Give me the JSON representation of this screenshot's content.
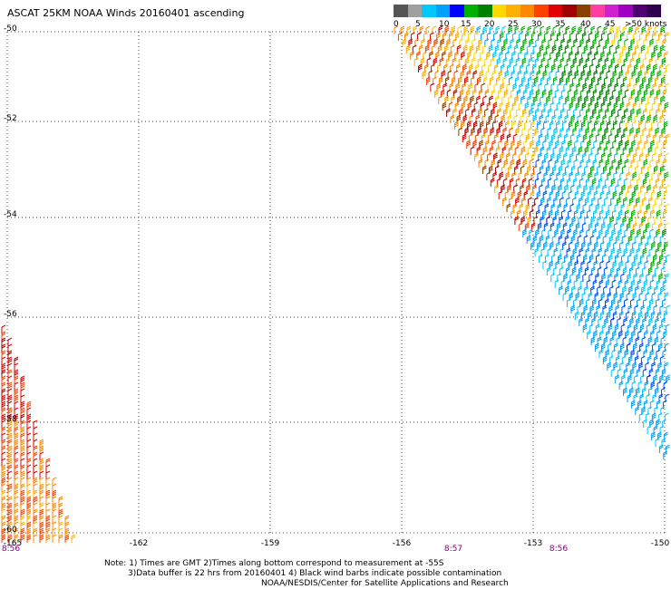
{
  "title": "ASCAT 25KM NOAA Winds 20160401 ascending",
  "legend": {
    "colors": [
      "#555555",
      "#a0a0a0",
      "#00c8ff",
      "#00a0ff",
      "#0000ff",
      "#00b000",
      "#008000",
      "#ffd800",
      "#ffb000",
      "#ff8800",
      "#ff4000",
      "#e00000",
      "#a00000",
      "#8b4000",
      "#ff40a0",
      "#d020d0",
      "#a000c0",
      "#500070",
      "#300050"
    ],
    "labels": [
      {
        "text": "0",
        "at": 0
      },
      {
        "text": "5",
        "at": 1
      },
      {
        "text": "10",
        "at": 2
      },
      {
        "text": "15",
        "at": 3
      },
      {
        "text": "20",
        "at": 4
      },
      {
        "text": "25",
        "at": 5
      },
      {
        "text": "30",
        "at": 6
      },
      {
        "text": "35",
        "at": 7
      },
      {
        "text": "40",
        "at": 8
      },
      {
        "text": "45",
        "at": 9
      },
      {
        "text": ">50 knots",
        "at": 10
      }
    ]
  },
  "axes": {
    "lat_labels": [
      "-50",
      "-52",
      "-54",
      "-56",
      "-58",
      "-60"
    ],
    "lon_labels": [
      "-165",
      "-162",
      "-159",
      "-156",
      "-153",
      "-150"
    ]
  },
  "time_labels": [
    {
      "text": "8:56",
      "lon": "-165"
    },
    {
      "text": "8:57",
      "lon": "-155.3"
    },
    {
      "text": "8:56",
      "lon": "-152.4"
    }
  ],
  "notes": [
    "Note: 1) Times are GMT 2)Times along bottom correspond to measurement at -55S",
    "3)Data buffer is 22 hrs from 20160401 4) Black wind barbs indicate possible contamination"
  ],
  "credit": "NOAA/NESDIS/Center for Satellite Applications and Research"
}
